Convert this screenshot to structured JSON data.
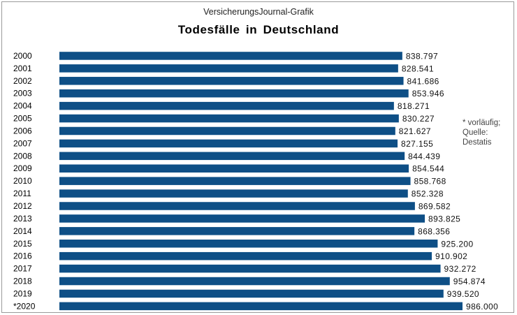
{
  "header": {
    "subtitle": "VersicherungsJournal-Grafik",
    "title": "Todesfälle in Deutschland"
  },
  "note": {
    "line1": "* vorläufig;",
    "line2": "Quelle:",
    "line3": "Destatis"
  },
  "colors": {
    "bar": "#0e4f86"
  },
  "chart_data": {
    "type": "bar",
    "orientation": "horizontal",
    "title": "Todesfälle in Deutschland",
    "xlabel": "",
    "ylabel": "",
    "grid": false,
    "legend": "none",
    "categories": [
      "2000",
      "2001",
      "2002",
      "2003",
      "2004",
      "2005",
      "2006",
      "2007",
      "2008",
      "2009",
      "2010",
      "2011",
      "2012",
      "2013",
      "2014",
      "2015",
      "2016",
      "2017",
      "2018",
      "2019",
      "*2020"
    ],
    "values": [
      838797,
      828541,
      841686,
      853946,
      818271,
      830227,
      821627,
      827155,
      844439,
      854544,
      858768,
      852328,
      869582,
      893825,
      868356,
      925200,
      910902,
      932272,
      954874,
      939520,
      986000
    ],
    "value_labels": [
      "838.797",
      "828.541",
      "841.686",
      "853.946",
      "818.271",
      "830.227",
      "821.627",
      "827.155",
      "844.439",
      "854.544",
      "858.768",
      "852.328",
      "869.582",
      "893.825",
      "868.356",
      "925.200",
      "910.902",
      "932.272",
      "954.874",
      "939.520",
      "986.000"
    ],
    "xlim": [
      0,
      986000
    ]
  }
}
